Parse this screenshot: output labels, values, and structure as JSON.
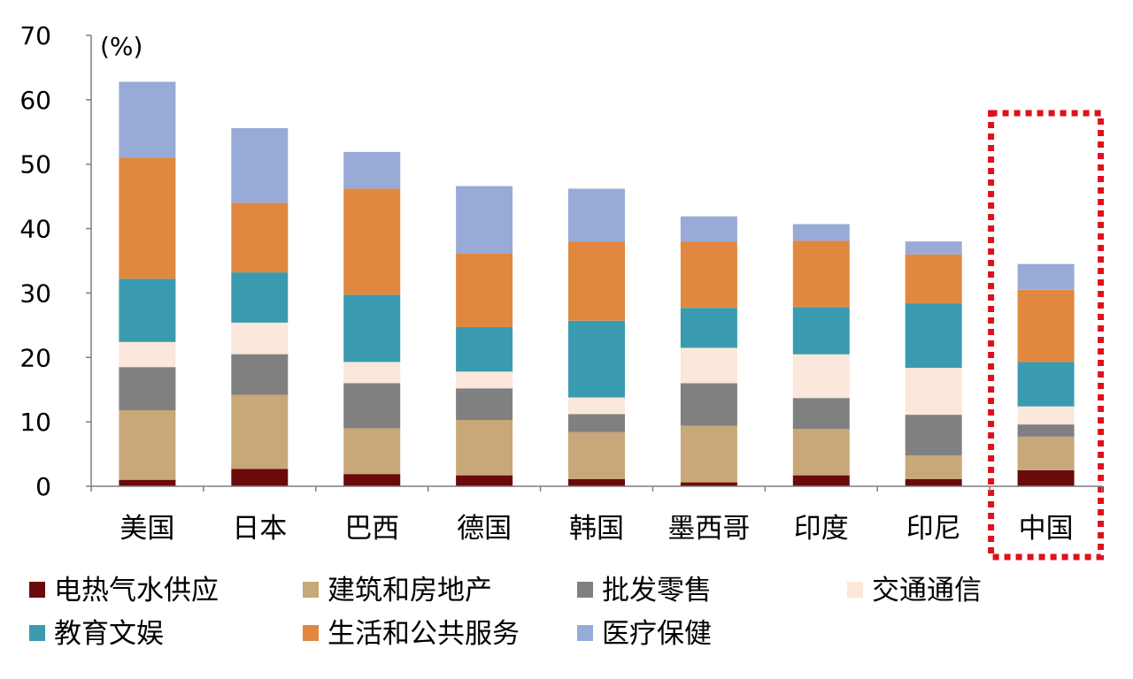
{
  "chart_data": {
    "type": "bar",
    "stacked": true,
    "unit_label": "(%)",
    "ylim": [
      0,
      70
    ],
    "yticks": [
      0,
      10,
      20,
      30,
      40,
      50,
      60,
      70
    ],
    "grid": false,
    "legend_position": "bottom",
    "highlight": {
      "category": "中国",
      "style": "dotted-box",
      "color": "#e0101a"
    },
    "categories": [
      "美国",
      "日本",
      "巴西",
      "德国",
      "韩国",
      "墨西哥",
      "印度",
      "印尼",
      "中国"
    ],
    "series": [
      {
        "name": "电热气水供应",
        "color": "#6b0a0a",
        "values": [
          1.0,
          2.7,
          1.9,
          1.7,
          1.1,
          0.6,
          1.7,
          1.1,
          2.5
        ]
      },
      {
        "name": "建筑和房地产",
        "color": "#c8a878",
        "values": [
          10.8,
          11.5,
          7.1,
          8.6,
          7.3,
          8.8,
          7.2,
          3.7,
          5.2
        ]
      },
      {
        "name": "批发零售",
        "color": "#808080",
        "values": [
          6.7,
          6.3,
          7.0,
          4.9,
          2.8,
          6.6,
          4.8,
          6.3,
          1.9
        ]
      },
      {
        "name": "交通通信",
        "color": "#fbe7db",
        "values": [
          3.9,
          4.9,
          3.3,
          2.6,
          2.6,
          5.5,
          6.8,
          7.3,
          2.8
        ]
      },
      {
        "name": "教育文娱",
        "color": "#3a9bb0",
        "values": [
          9.8,
          7.8,
          10.4,
          6.9,
          11.9,
          6.2,
          7.3,
          10.0,
          6.9
        ]
      },
      {
        "name": "生活和公共服务",
        "color": "#e08840",
        "values": [
          18.8,
          10.8,
          16.5,
          11.5,
          12.3,
          10.3,
          10.3,
          7.6,
          11.2
        ]
      },
      {
        "name": "医疗保健",
        "color": "#97abd6",
        "values": [
          11.8,
          11.6,
          5.7,
          10.4,
          8.2,
          3.9,
          2.6,
          2.0,
          4.0
        ]
      }
    ]
  }
}
